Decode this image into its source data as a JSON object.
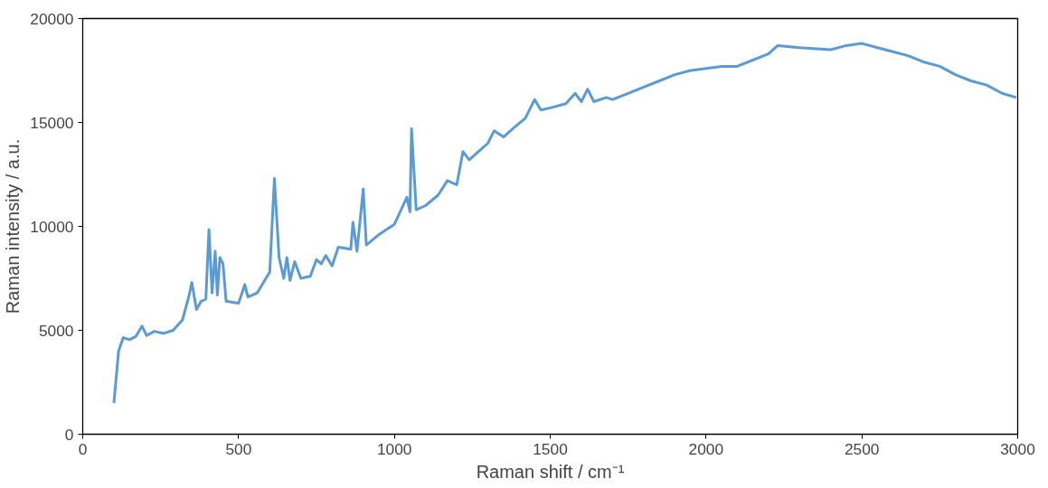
{
  "chart_data": {
    "type": "line",
    "xlabel": "Raman shift / cm⁻¹",
    "ylabel": "Raman intensity / a.u.",
    "xlim": [
      0,
      3000
    ],
    "xticks": [
      0,
      500,
      1000,
      1500,
      2000,
      2500,
      3000
    ],
    "ylim": [
      0,
      20000
    ],
    "yticks": [
      0,
      5000,
      10000,
      15000,
      20000
    ],
    "grid": false,
    "marker": "none",
    "line_style": "solid",
    "series": [
      {
        "color": "#5b9bd5",
        "x": [
          100,
          115,
          130,
          150,
          170,
          190,
          205,
          230,
          260,
          290,
          320,
          340,
          350,
          365,
          380,
          395,
          405,
          415,
          425,
          432,
          440,
          450,
          460,
          500,
          520,
          530,
          560,
          600,
          615,
          630,
          645,
          655,
          665,
          680,
          700,
          730,
          750,
          765,
          780,
          800,
          820,
          860,
          867,
          880,
          900,
          910,
          950,
          970,
          1000,
          1040,
          1050,
          1055,
          1070,
          1100,
          1140,
          1170,
          1200,
          1210,
          1220,
          1240,
          1270,
          1300,
          1320,
          1350,
          1380,
          1420,
          1450,
          1470,
          1500,
          1550,
          1580,
          1600,
          1620,
          1640,
          1680,
          1700,
          1750,
          1800,
          1850,
          1900,
          1950,
          2000,
          2050,
          2100,
          2150,
          2200,
          2230,
          2300,
          2400,
          2450,
          2500,
          2550,
          2600,
          2650,
          2700,
          2750,
          2800,
          2850,
          2900,
          2950,
          2995
        ],
        "values": [
          1500,
          4000,
          4650,
          4550,
          4700,
          5200,
          4750,
          4950,
          4850,
          5000,
          5500,
          6600,
          7300,
          6000,
          6400,
          6500,
          9850,
          6800,
          8800,
          6700,
          8500,
          8200,
          6400,
          6300,
          7200,
          6600,
          6800,
          7800,
          12300,
          8500,
          7500,
          8500,
          7400,
          8300,
          7500,
          7600,
          8400,
          8200,
          8600,
          8100,
          9000,
          8900,
          10200,
          8800,
          11800,
          9100,
          9600,
          9800,
          10100,
          11400,
          10700,
          14700,
          10800,
          11000,
          11500,
          12200,
          12000,
          12800,
          13600,
          13200,
          13600,
          14000,
          14600,
          14300,
          14700,
          15200,
          16100,
          15600,
          15700,
          15900,
          16400,
          16000,
          16600,
          16000,
          16200,
          16100,
          16400,
          16700,
          17000,
          17300,
          17500,
          17600,
          17700,
          17700,
          18000,
          18300,
          18700,
          18600,
          18500,
          18700,
          18800,
          18600,
          18400,
          18200,
          17900,
          17700,
          17300,
          17000,
          16800,
          16400,
          16200
        ]
      }
    ]
  }
}
